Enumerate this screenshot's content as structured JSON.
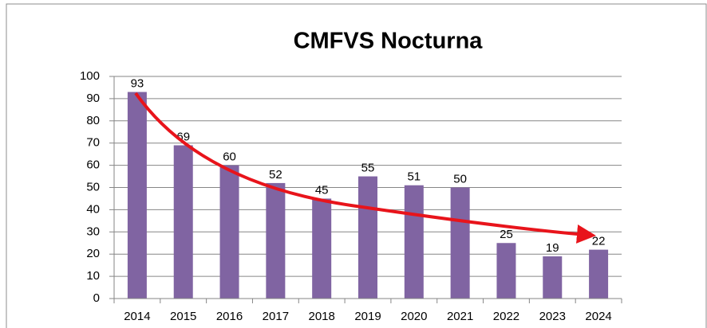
{
  "chart_data": {
    "type": "bar",
    "title": "CMFVS Nocturna",
    "categories": [
      "2014",
      "2015",
      "2016",
      "2017",
      "2018",
      "2019",
      "2020",
      "2021",
      "2022",
      "2023",
      "2024"
    ],
    "values": [
      93,
      69,
      60,
      52,
      45,
      55,
      51,
      50,
      25,
      19,
      22
    ],
    "color": "#8064a2",
    "ylim": [
      0,
      100
    ],
    "yticks": [
      0,
      10,
      20,
      30,
      40,
      50,
      60,
      70,
      80,
      90,
      100
    ],
    "grid": true
  }
}
